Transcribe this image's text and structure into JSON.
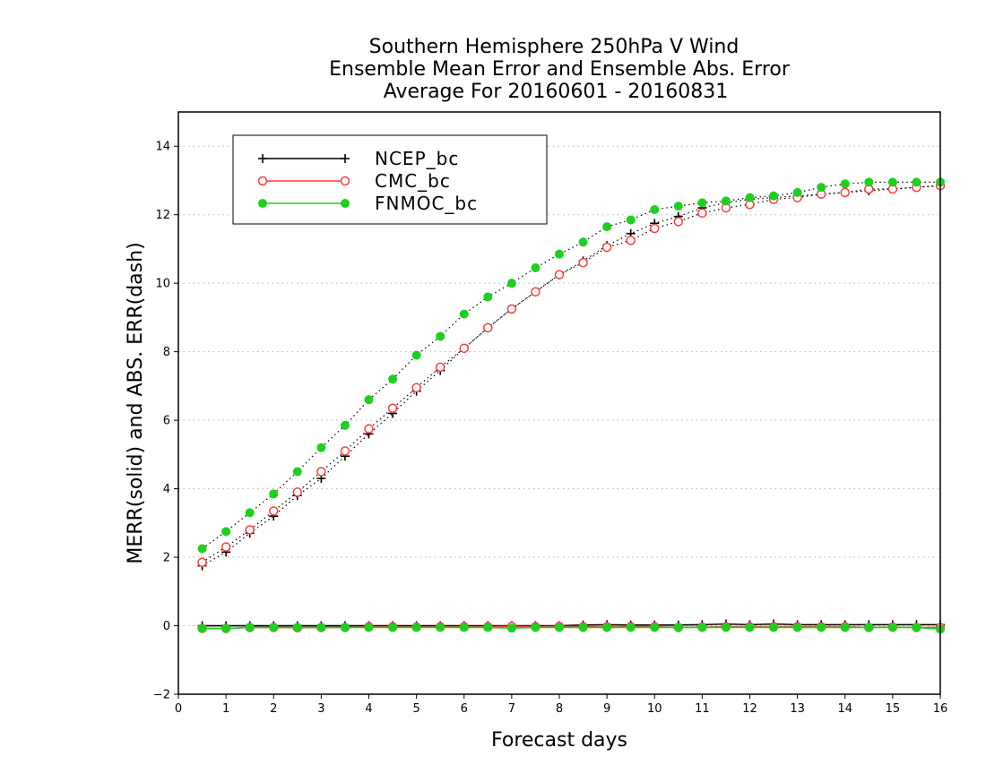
{
  "chart_data": {
    "type": "line",
    "title": [
      "Southern Hemisphere 250hPa V Wind",
      "Ensemble Mean Error and Ensemble Abs. Error",
      "Average For 20160601 - 20160831"
    ],
    "xlabel": "Forecast days",
    "ylabel": "MERR(solid) and ABS. ERR(dash)",
    "xlim": [
      0,
      16
    ],
    "ylim": [
      -2,
      15
    ],
    "xticks": [
      0,
      1,
      2,
      3,
      4,
      5,
      6,
      7,
      8,
      9,
      10,
      11,
      12,
      13,
      14,
      15,
      16
    ],
    "yticks": [
      -2,
      0,
      2,
      4,
      6,
      8,
      10,
      12,
      14
    ],
    "grid": "horizontal dotted",
    "legend_position": "top-left",
    "x": [
      0.5,
      1.0,
      1.5,
      2.0,
      2.5,
      3.0,
      3.5,
      4.0,
      4.5,
      5.0,
      5.5,
      6.0,
      6.5,
      7.0,
      7.5,
      8.0,
      8.5,
      9.0,
      9.5,
      10.0,
      10.5,
      11.0,
      11.5,
      12.0,
      12.5,
      13.0,
      13.5,
      14.0,
      14.5,
      15.0,
      15.5,
      16.0
    ],
    "series": [
      {
        "name": "NCEP_bc",
        "color": "#000000",
        "marker": "plus",
        "abs_error": [
          1.75,
          2.15,
          2.7,
          3.2,
          3.8,
          4.3,
          4.95,
          5.6,
          6.2,
          6.85,
          7.45,
          8.1,
          8.7,
          9.25,
          9.75,
          10.25,
          10.65,
          11.1,
          11.45,
          11.75,
          11.95,
          12.2,
          12.35,
          12.45,
          12.5,
          12.55,
          12.6,
          12.65,
          12.7,
          12.75,
          12.8,
          12.85
        ],
        "mean_error": [
          0.0,
          0.0,
          0.0,
          0.0,
          0.0,
          0.0,
          0.0,
          0.0,
          0.0,
          0.0,
          0.0,
          0.0,
          0.0,
          0.0,
          0.0,
          0.0,
          0.02,
          0.03,
          0.02,
          0.02,
          0.02,
          0.03,
          0.05,
          0.03,
          0.05,
          0.03,
          0.03,
          0.03,
          0.03,
          0.03,
          0.03,
          0.03
        ]
      },
      {
        "name": "CMC_bc",
        "color": "#ff3b3b",
        "marker": "open-circle",
        "abs_error": [
          1.85,
          2.3,
          2.8,
          3.35,
          3.9,
          4.5,
          5.1,
          5.75,
          6.35,
          6.95,
          7.55,
          8.1,
          8.7,
          9.25,
          9.75,
          10.25,
          10.6,
          11.05,
          11.25,
          11.6,
          11.8,
          12.05,
          12.2,
          12.3,
          12.45,
          12.5,
          12.6,
          12.65,
          12.75,
          12.75,
          12.8,
          12.85
        ],
        "mean_error": [
          -0.08,
          -0.08,
          -0.05,
          -0.05,
          -0.06,
          -0.05,
          -0.05,
          -0.03,
          -0.03,
          -0.04,
          -0.03,
          -0.03,
          -0.03,
          -0.02,
          -0.03,
          -0.02,
          -0.03,
          -0.03,
          -0.03,
          -0.03,
          -0.05,
          -0.04,
          -0.03,
          -0.03,
          -0.03,
          -0.03,
          -0.03,
          -0.03,
          -0.05,
          -0.04,
          -0.05,
          -0.05
        ]
      },
      {
        "name": "FNMOC_bc",
        "color": "#1ed01e",
        "marker": "filled-circle",
        "abs_error": [
          2.25,
          2.75,
          3.3,
          3.85,
          4.5,
          5.2,
          5.85,
          6.6,
          7.2,
          7.9,
          8.45,
          9.1,
          9.6,
          10.0,
          10.45,
          10.85,
          11.2,
          11.65,
          11.85,
          12.15,
          12.25,
          12.35,
          12.4,
          12.5,
          12.55,
          12.65,
          12.8,
          12.9,
          12.95,
          12.95,
          12.95,
          12.95
        ],
        "mean_error": [
          -0.08,
          -0.08,
          -0.05,
          -0.05,
          -0.05,
          -0.05,
          -0.05,
          -0.05,
          -0.05,
          -0.05,
          -0.05,
          -0.05,
          -0.05,
          -0.07,
          -0.05,
          -0.05,
          -0.05,
          -0.05,
          -0.05,
          -0.05,
          -0.05,
          -0.05,
          -0.05,
          -0.05,
          -0.05,
          -0.05,
          -0.05,
          -0.05,
          -0.05,
          -0.05,
          -0.05,
          -0.1
        ]
      }
    ]
  }
}
